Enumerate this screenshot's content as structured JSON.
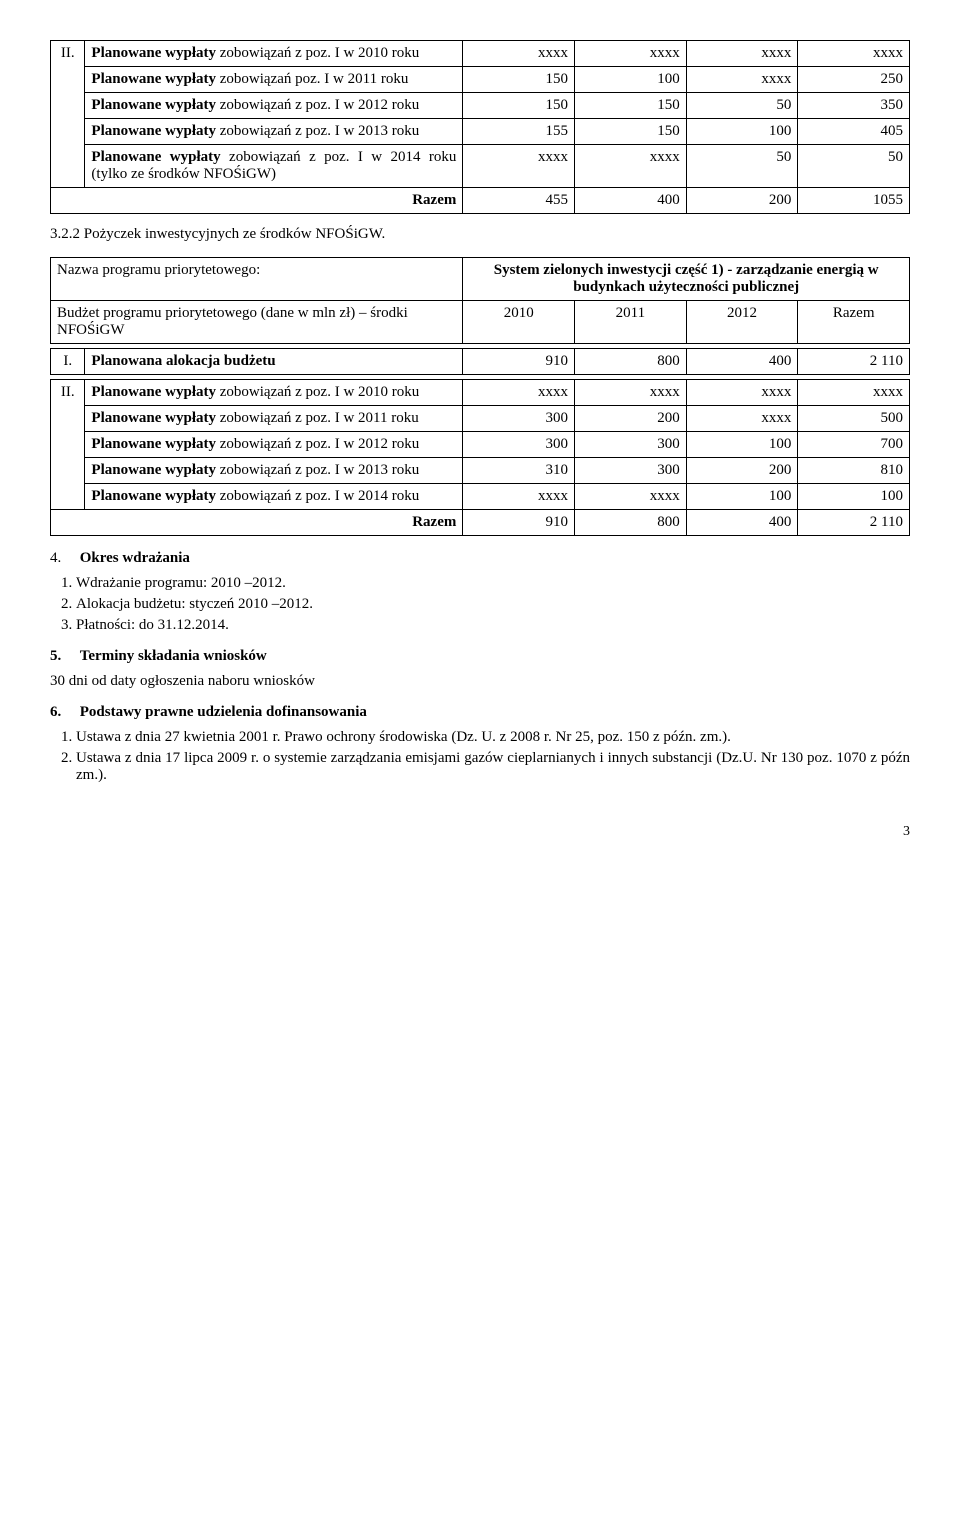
{
  "table1": {
    "section_label": "II.",
    "rows": [
      {
        "label": "Planowane wypłaty zobowiązań z poz. I w 2010 roku",
        "v": [
          "xxxx",
          "xxxx",
          "xxxx",
          "xxxx"
        ]
      },
      {
        "label": "Planowane wypłaty zobowiązań  poz. I w 2011 roku",
        "v": [
          "150",
          "100",
          "xxxx",
          "250"
        ]
      },
      {
        "label": "Planowane wypłaty zobowiązań z poz. I w 2012 roku",
        "v": [
          "150",
          "150",
          "50",
          "350"
        ]
      },
      {
        "label": "Planowane wypłaty zobowiązań z poz. I w 2013 roku",
        "v": [
          "155",
          "150",
          "100",
          "405"
        ]
      },
      {
        "label": "Planowane wypłaty zobowiązań z poz. I w 2014 roku (tylko ze środków NFOŚiGW)",
        "v": [
          "xxxx",
          "xxxx",
          "50",
          "50"
        ]
      }
    ],
    "total_label": "Razem",
    "total": [
      "455",
      "400",
      "200",
      "1055"
    ]
  },
  "subheading_322": "3.2.2 Pożyczek inwestycyjnych ze środków NFOŚiGW.",
  "table2_header": {
    "row1_left": "Nazwa programu priorytetowego:",
    "row1_right": "System zielonych inwestycji część 1) - zarządzanie energią w budynkach użyteczności publicznej",
    "row2_left": "Budżet programu priorytetowego (dane w mln zł) – środki NFOŚiGW",
    "cols": [
      "2010",
      "2011",
      "2012",
      "Razem"
    ]
  },
  "table2_body": {
    "rowI_label": "I.",
    "rowI_text": "Planowana alokacja budżetu",
    "rowI_vals": [
      "910",
      "800",
      "400",
      "2 110"
    ],
    "section_label": "II.",
    "rows": [
      {
        "label": "Planowane wypłaty zobowiązań z poz. I w 2010 roku",
        "v": [
          "xxxx",
          "xxxx",
          "xxxx",
          "xxxx"
        ]
      },
      {
        "label": "Planowane wypłaty zobowiązań z poz. I w 2011 roku",
        "v": [
          "300",
          "200",
          "xxxx",
          "500"
        ]
      },
      {
        "label": "Planowane wypłaty zobowiązań z poz. I w 2012 roku",
        "v": [
          "300",
          "300",
          "100",
          "700"
        ]
      },
      {
        "label": "Planowane wypłaty zobowiązań z poz. I w 2013 roku",
        "v": [
          "310",
          "300",
          "200",
          "810"
        ]
      },
      {
        "label": "Planowane wypłaty zobowiązań z poz. I w 2014 roku",
        "v": [
          "xxxx",
          "xxxx",
          "100",
          "100"
        ]
      }
    ],
    "total_label": "Razem",
    "total": [
      "910",
      "800",
      "400",
      "2 110"
    ]
  },
  "sec4_title": "Okres wdrażania",
  "sec4_num": "4.",
  "sec4_items": [
    "Wdrażanie programu: 2010 –2012.",
    "Alokacja budżetu: styczeń 2010 –2012.",
    "Płatności: do 31.12.2014."
  ],
  "sec5_num": "5.",
  "sec5_title": "Terminy składania wniosków",
  "sec5_body": "30 dni od daty ogłoszenia naboru wniosków",
  "sec6_num": "6.",
  "sec6_title": "Podstawy prawne udzielenia dofinansowania",
  "sec6_items": [
    "Ustawa z dnia 27 kwietnia 2001 r. Prawo ochrony środowiska (Dz. U. z 2008 r. Nr 25, poz. 150 z późn. zm.).",
    "Ustawa z dnia 17 lipca 2009 r. o systemie zarządzania emisjami gazów cieplarnianych i innych substancji (Dz.U. Nr 130 poz. 1070 z późn zm.)."
  ],
  "page_number": "3",
  "label_prefix_bold": "Planowane wypłaty",
  "rowI_prefix_bold": "Planowana alokacja budżetu"
}
